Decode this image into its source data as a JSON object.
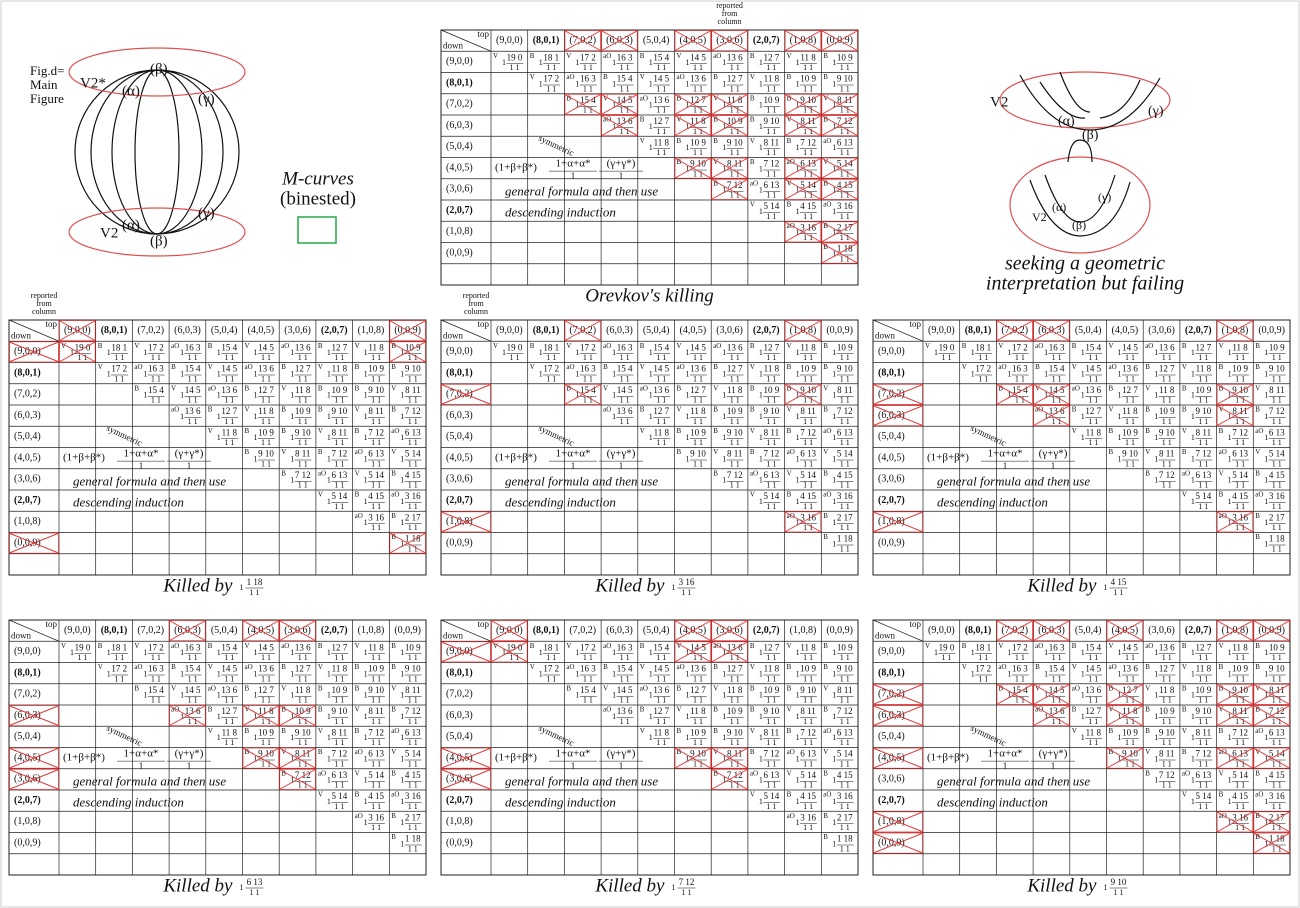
{
  "main_figure": {
    "label": [
      "Fig.d=",
      "Main",
      "Figure"
    ],
    "top_sheet": "V2*",
    "bottom_sheet": "V2",
    "top_ovals": [
      "(β)",
      "(α)",
      "(γ)"
    ],
    "bottom_ovals": [
      "(α)",
      "(β)",
      "(γ)"
    ],
    "legend": [
      "M-curves",
      "(binested)"
    ]
  },
  "right_figure": {
    "top_sheet": "V2",
    "top_ovals": [
      "(α)",
      "(β)",
      "(γ)"
    ],
    "bottom_sheet": "V2",
    "bottom_ovals": [
      "(α)",
      "(β)",
      "(γ)"
    ],
    "caption": [
      "seeking a geometric",
      "interpretation but failing"
    ]
  },
  "table": {
    "corner_top": "top",
    "corner_down": "down",
    "headers": [
      "(9,0,0)",
      "(8,0,1)",
      "(7,0,2)",
      "(6,0,3)",
      "(5,0,4)",
      "(4,0,5)",
      "(3,0,6)",
      "(2,0,7)",
      "(1,0,8)",
      "(0,0,9)"
    ],
    "entries": [
      {
        "mark": "V",
        "num": "19 0"
      },
      {
        "mark": "B",
        "num": "18 1"
      },
      {
        "mark": "V",
        "num": "17 2"
      },
      {
        "mark": "aO",
        "num": "16 3"
      },
      {
        "mark": "B",
        "num": "15 4"
      },
      {
        "mark": "V",
        "num": "14 5"
      },
      {
        "mark": "aO",
        "num": "13 6"
      },
      {
        "mark": "B",
        "num": "12 7"
      },
      {
        "mark": "V",
        "num": "11 8"
      },
      {
        "mark": "B",
        "num": "10 9"
      },
      {
        "mark": "B",
        "num": "9 10"
      },
      {
        "mark": "V",
        "num": "8 11"
      },
      {
        "mark": "B",
        "num": "7 12"
      },
      {
        "mark": "aO",
        "num": "6 13"
      },
      {
        "mark": "V",
        "num": "5 14"
      },
      {
        "mark": "B",
        "num": "4 15"
      },
      {
        "mark": "aO",
        "num": "3 16"
      },
      {
        "mark": "B",
        "num": "2 17"
      },
      {
        "mark": "B",
        "num": "1 18"
      }
    ],
    "lead": "1",
    "den": "1 1",
    "symmetric": "symmetric",
    "formula": {
      "prefix": "(1+β+β*)",
      "frac1_num": "1+α+α*",
      "frac1_den": "1",
      "frac2_num": "(γ+γ*)",
      "frac2_den": "1"
    },
    "note": [
      "general formula and then use",
      "descending induction"
    ],
    "reported": [
      "reported",
      "from",
      "column"
    ]
  },
  "panels": [
    {
      "caption": "Orevkov's killing"
    },
    {
      "caption": "Killed by",
      "entry_lead": "1",
      "entry_num": "1 18",
      "entry_den": "1 1"
    },
    {
      "caption": "Killed by",
      "entry_lead": "1",
      "entry_num": "3 16",
      "entry_den": "1 1"
    },
    {
      "caption": "Killed by",
      "entry_lead": "1",
      "entry_num": "4 15",
      "entry_den": "1 1"
    },
    {
      "caption": "Killed by",
      "entry_lead": "1",
      "entry_num": "6 13",
      "entry_den": "1 1"
    },
    {
      "caption": "Killed by",
      "entry_lead": "1",
      "entry_num": "7 12",
      "entry_den": "1 1"
    },
    {
      "caption": "Killed by",
      "entry_lead": "1",
      "entry_num": "9 10",
      "entry_den": "1 1"
    }
  ]
}
